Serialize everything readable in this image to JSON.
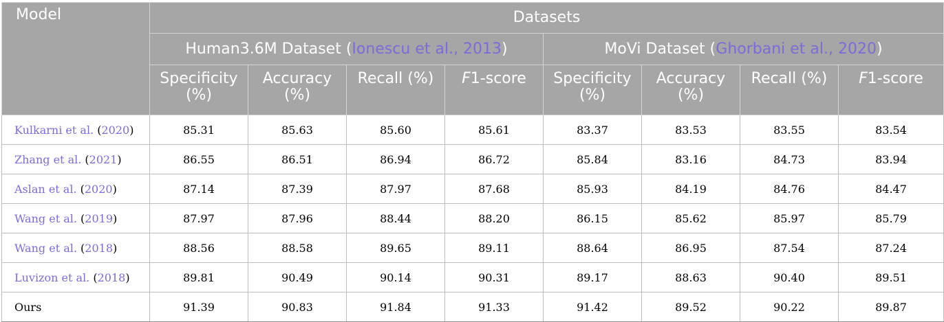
{
  "header": {
    "model": "Model",
    "datasets": "Datasets",
    "groups": [
      {
        "name": "Human3.6M Dataset",
        "open": " (",
        "cite": "Ionescu et al., 2013",
        "close": ")"
      },
      {
        "name": "MoVi Dataset",
        "open": " (",
        "cite": "Ghorbani et al., 2020",
        "close": ")"
      }
    ],
    "metrics": [
      {
        "line1": "Specificity",
        "line2": "(%)"
      },
      {
        "line1": "Accuracy",
        "line2": "(%)"
      },
      {
        "line1": "Recall (%)",
        "line2": ""
      },
      {
        "italic": "F",
        "rest": "1-score",
        "line2": ""
      }
    ]
  },
  "rows": [
    {
      "author": "Kulkarni et al.",
      "open": " (",
      "year": "2020",
      "close": ")",
      "values": [
        "85.31",
        "85.63",
        "85.60",
        "85.61",
        "83.37",
        "83.53",
        "83.55",
        "83.54"
      ]
    },
    {
      "author": "Zhang et al.",
      "open": " (",
      "year": "2021",
      "close": ")",
      "values": [
        "86.55",
        "86.51",
        "86.94",
        "86.72",
        "85.84",
        "83.16",
        "84.73",
        "83.94"
      ]
    },
    {
      "author": "Aslan et al.",
      "open": " (",
      "year": "2020",
      "close": ")",
      "values": [
        "87.14",
        "87.39",
        "87.97",
        "87.68",
        "85.93",
        "84.19",
        "84.76",
        "84.47"
      ]
    },
    {
      "author": "Wang et al.",
      "open": " (",
      "year": "2019",
      "close": ")",
      "values": [
        "87.97",
        "87.96",
        "88.44",
        "88.20",
        "86.15",
        "85.62",
        "85.97",
        "85.79"
      ]
    },
    {
      "author": "Wang et al.",
      "open": " (",
      "year": "2018",
      "close": ")",
      "values": [
        "88.56",
        "88.58",
        "89.65",
        "89.11",
        "88.64",
        "86.95",
        "87.54",
        "87.24"
      ]
    },
    {
      "author": "Luvizon et al.",
      "open": " (",
      "year": "2018",
      "close": ")",
      "values": [
        "89.81",
        "90.49",
        "90.14",
        "90.31",
        "89.17",
        "88.63",
        "90.40",
        "89.51"
      ]
    },
    {
      "author": "Ours",
      "open": "",
      "year": "",
      "close": "",
      "values": [
        "91.39",
        "90.83",
        "91.84",
        "91.33",
        "91.42",
        "89.52",
        "90.22",
        "89.87"
      ]
    }
  ]
}
